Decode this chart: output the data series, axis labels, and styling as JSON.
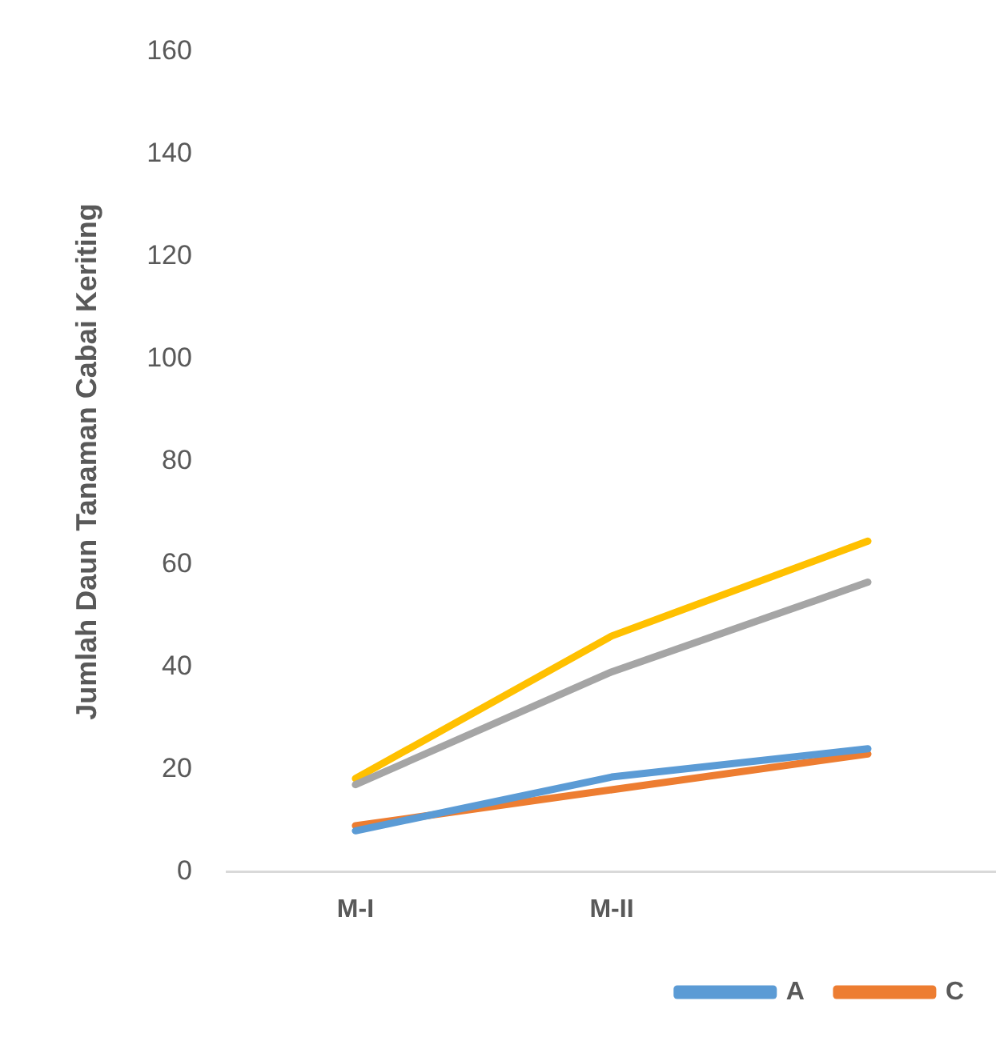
{
  "chart_data": {
    "type": "line",
    "ylabel": "Jumlah Daun Tanaman Cabai Keriting",
    "categories": [
      "M-I",
      "M-II",
      null
    ],
    "ylim": [
      0,
      160
    ],
    "yticks": [
      0,
      20,
      40,
      60,
      80,
      100,
      120,
      140,
      160
    ],
    "grid": false,
    "legend": "bottom",
    "marker": "none",
    "line_style": "solid",
    "series": [
      {
        "name": "A",
        "color": "#5b9bd5",
        "values": [
          8,
          18.5,
          24
        ]
      },
      {
        "name": "C",
        "color": "#ed7d31",
        "values": [
          9,
          16,
          23
        ]
      },
      {
        "color": "#a5a5a5",
        "values": [
          17,
          39,
          56.5
        ]
      },
      {
        "color": "#ffc000",
        "values": [
          18.2,
          46,
          64.5
        ]
      }
    ]
  }
}
